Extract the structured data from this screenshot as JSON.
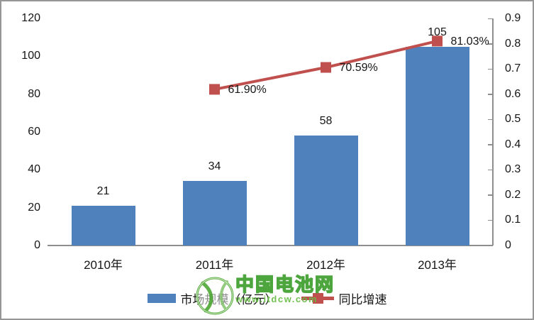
{
  "chart_data": {
    "type": "combo",
    "categories": [
      "2010年",
      "2011年",
      "2012年",
      "2013年"
    ],
    "series": [
      {
        "name": "市场规模（亿元）",
        "type": "bar",
        "axis": "left",
        "color": "#4F81BD",
        "values": [
          21,
          34,
          58,
          105
        ],
        "labels": [
          "21",
          "34",
          "58",
          "105"
        ]
      },
      {
        "name": "同比增速",
        "type": "line",
        "axis": "right",
        "color": "#C0504D",
        "values": [
          null,
          0.619,
          0.7059,
          0.8103
        ],
        "labels": [
          null,
          "61.90%",
          "70.59%",
          "81.03%"
        ]
      }
    ],
    "left_axis": {
      "min": 0,
      "max": 120,
      "step": 20,
      "ticks": [
        "0",
        "20",
        "40",
        "60",
        "80",
        "100",
        "120"
      ]
    },
    "right_axis": {
      "min": 0,
      "max": 0.9,
      "step": 0.1,
      "ticks": [
        "0",
        "0.1",
        "0.2",
        "0.3",
        "0.4",
        "0.5",
        "0.6",
        "0.7",
        "0.8",
        "0.9"
      ]
    },
    "title": "",
    "xlabel": "",
    "ylabel": "",
    "grid": false,
    "legend_position": "bottom",
    "axis_color": "#8E8E8E",
    "text_color": "#161616"
  },
  "legend": {
    "items": [
      {
        "label": "市场规模（亿元）",
        "swatch": "bar",
        "color": "#4F81BD"
      },
      {
        "label": "同比增速",
        "swatch": "line-marker",
        "color": "#C0504D"
      }
    ]
  },
  "watermark": {
    "title": "中国电池网",
    "url": "www.itdcw.com",
    "logo": "green-ball-logo",
    "color": "#3F9F2F"
  }
}
